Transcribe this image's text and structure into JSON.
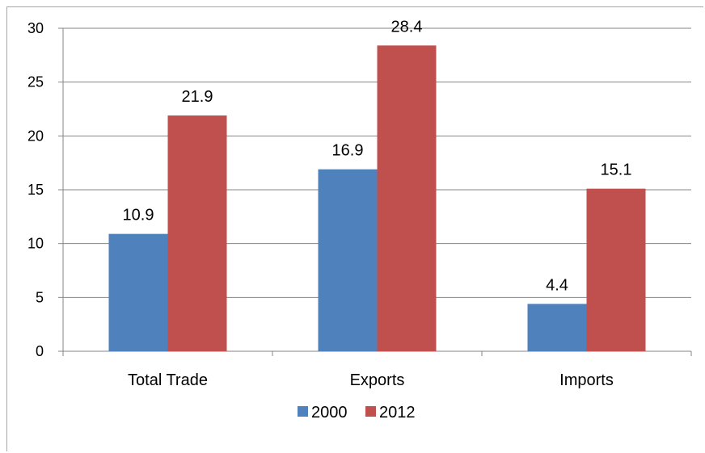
{
  "chart_data": {
    "type": "bar",
    "categories": [
      "Total Trade",
      "Exports",
      "Imports"
    ],
    "series": [
      {
        "name": "2000",
        "values": [
          10.9,
          16.9,
          4.4
        ],
        "color": "#4f81bd"
      },
      {
        "name": "2012",
        "values": [
          21.9,
          28.4,
          15.1
        ],
        "color": "#c0504d"
      }
    ],
    "ylim": [
      0,
      30
    ],
    "yticks": [
      0,
      5,
      10,
      15,
      20,
      25,
      30
    ],
    "data_labels": [
      [
        "10.9",
        "16.9",
        "4.4"
      ],
      [
        "21.9",
        "28.4",
        "15.1"
      ]
    ],
    "grid": true,
    "legend_position": "bottom",
    "title": "",
    "xlabel": "",
    "ylabel": ""
  }
}
